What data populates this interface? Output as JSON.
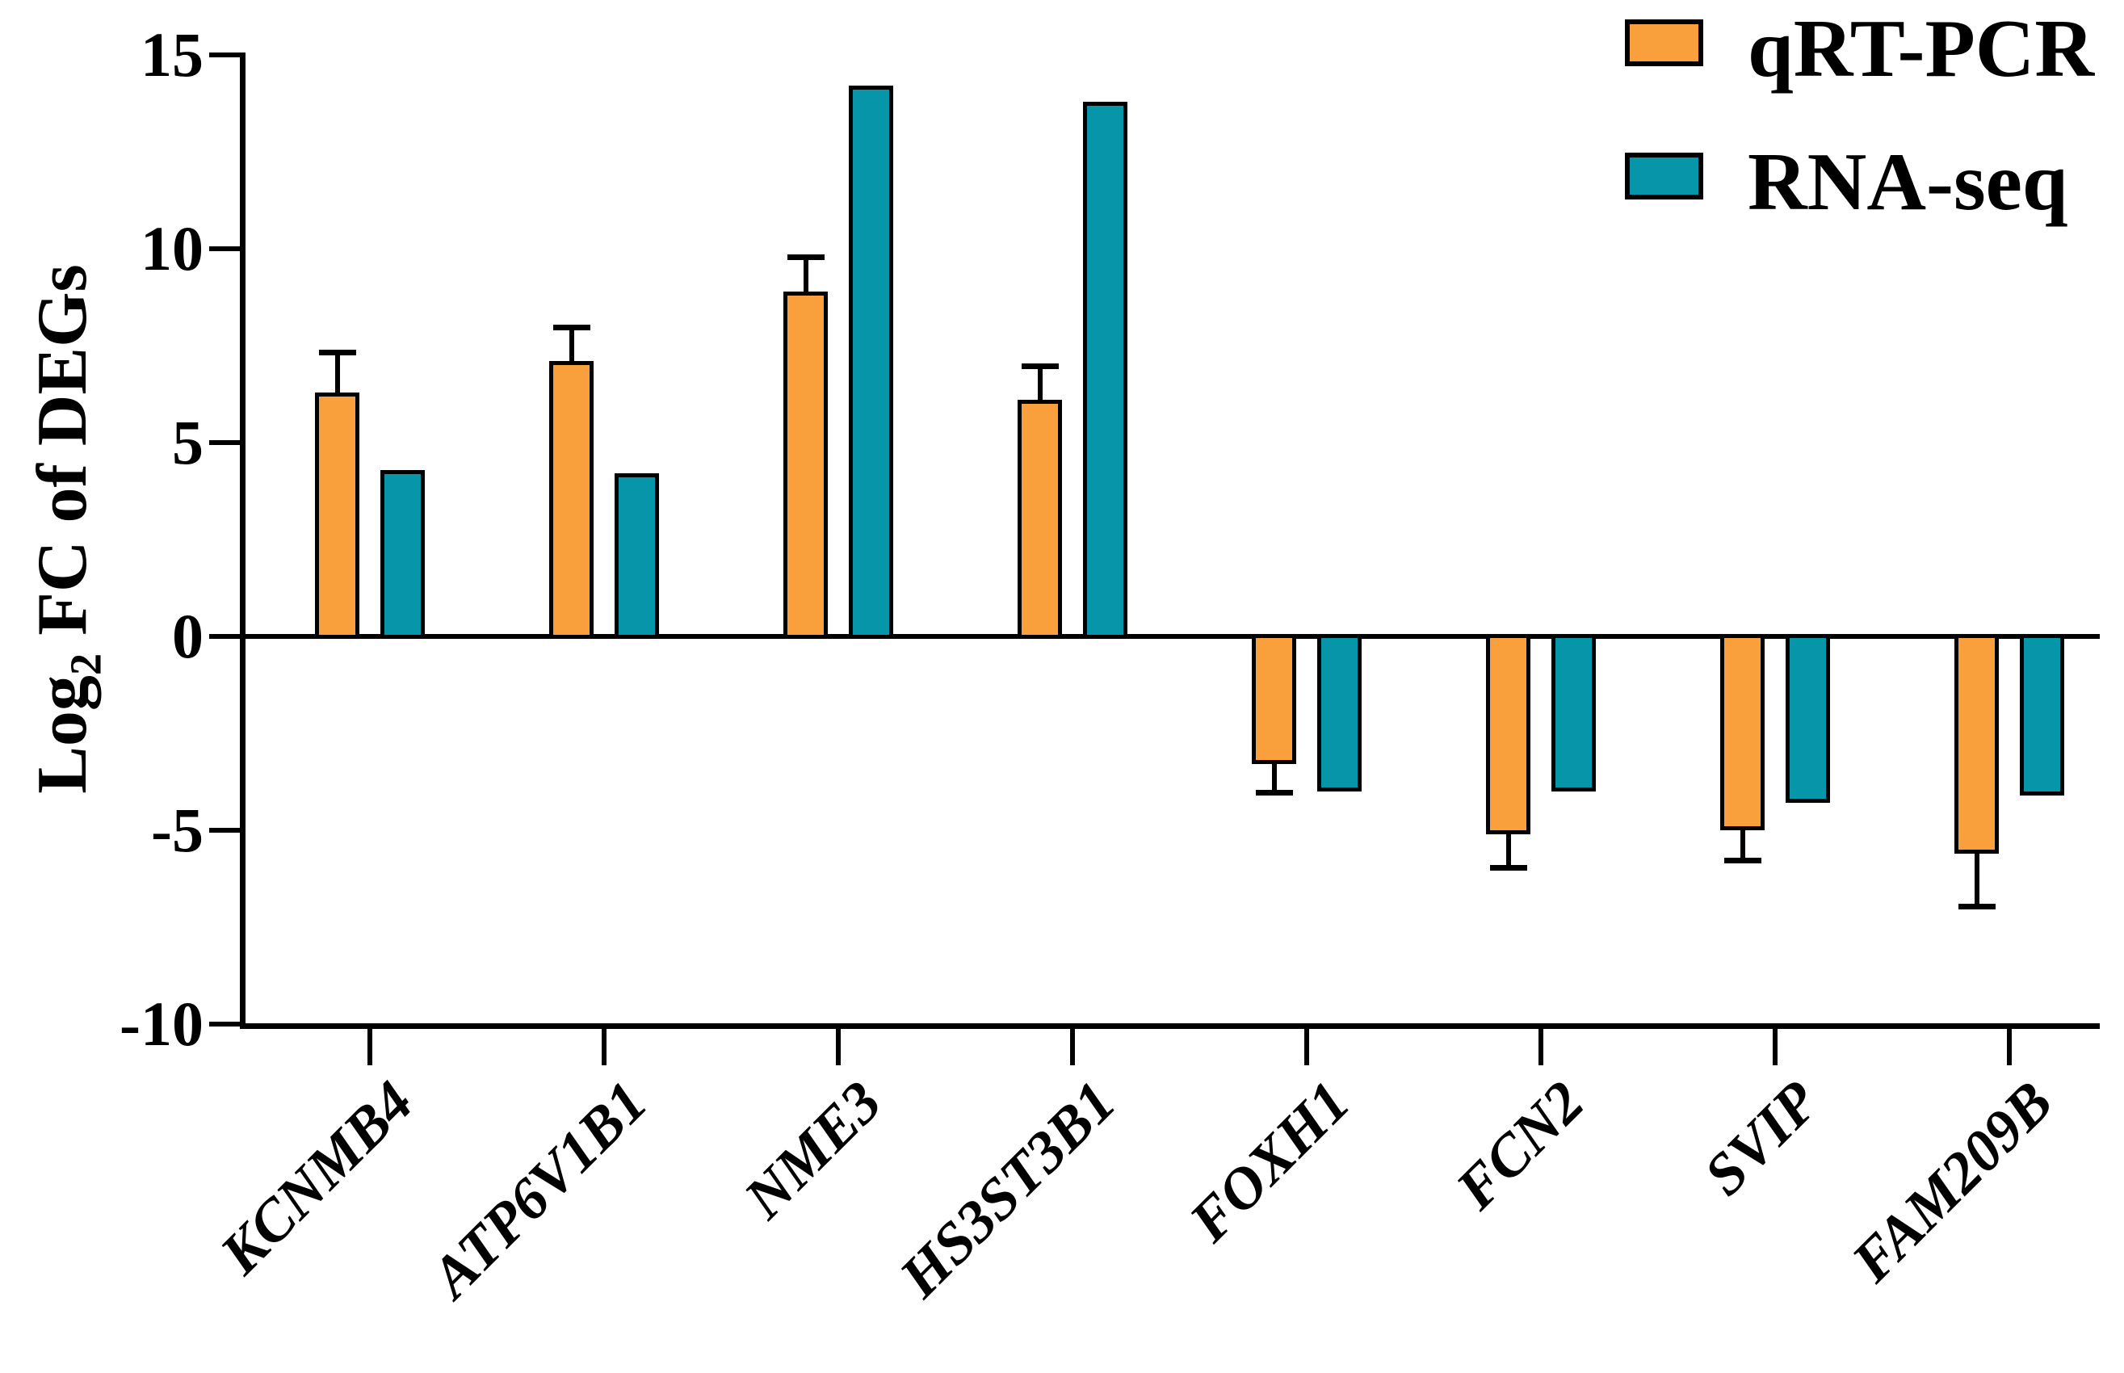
{
  "figure": {
    "background": "#FFFFFF",
    "y_axis": {
      "title_prefix": "Log",
      "title_sub": "2",
      "title_suffix": " FC of DEGs",
      "tick_labels": [
        "15",
        "10",
        "5",
        "0",
        "-5",
        "-10"
      ],
      "tick_values": [
        15,
        10,
        5,
        0,
        -5,
        -10
      ]
    }
  },
  "chart_data": {
    "type": "bar",
    "title": "",
    "xlabel": "",
    "ylabel": "Log2 FC of DEGs",
    "categories": [
      "KCNMB4",
      "ATP6V1B1",
      "NME3",
      "HS3ST3B1",
      "FOXH1",
      "FCN2",
      "SVIP",
      "FAM209B"
    ],
    "series": [
      {
        "name": "qRT-PCR",
        "color": "#F9A03C",
        "values": [
          6.3,
          7.1,
          8.9,
          6.1,
          -3.3,
          -5.1,
          -5.0,
          -5.6
        ],
        "errors": [
          0.95,
          0.8,
          0.8,
          0.8,
          0.65,
          0.8,
          0.7,
          1.3
        ]
      },
      {
        "name": "RNA-seq",
        "color": "#0795A9",
        "values": [
          4.3,
          4.2,
          14.2,
          13.8,
          -4.0,
          -4.0,
          -4.3,
          -4.1
        ]
      }
    ],
    "ylim": [
      -10,
      15
    ],
    "y_ticks": [
      15,
      10,
      5,
      0,
      -5,
      -10
    ],
    "legend_position": "top-right",
    "grid": false
  }
}
